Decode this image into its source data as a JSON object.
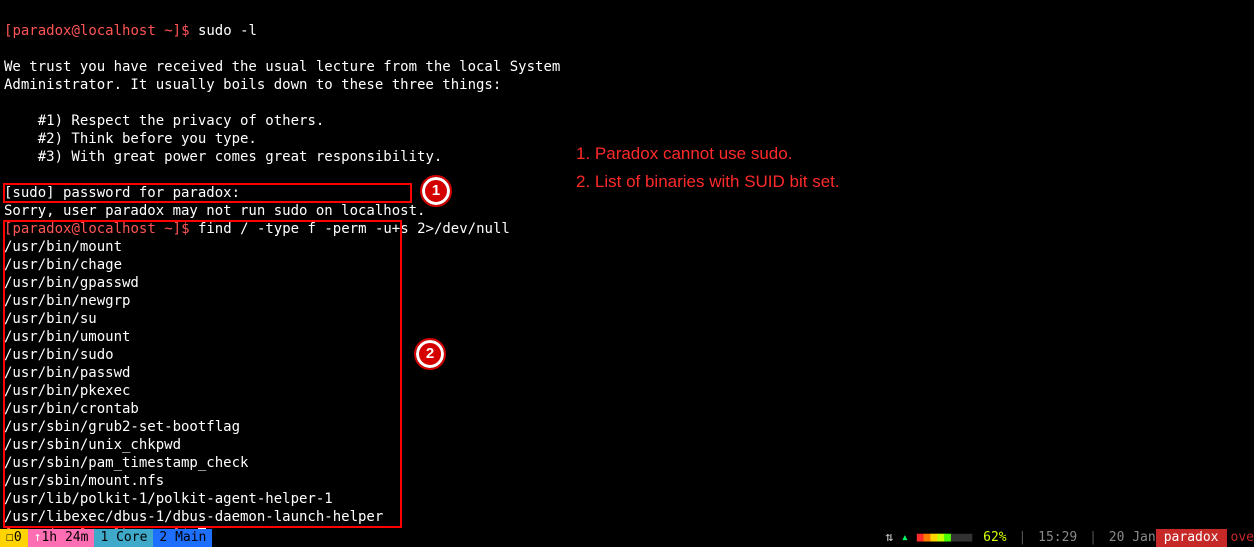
{
  "prompt": {
    "user": "paradox",
    "host": "localhost",
    "path": "~",
    "mark": "$"
  },
  "cmds": {
    "sudo": "sudo -l",
    "find": "find / -type f -perm -u+s 2>/dev/null"
  },
  "lecture": {
    "l1": "We trust you have received the usual lecture from the local System",
    "l2": "Administrator. It usually boils down to these three things:",
    "i1": "#1) Respect the privacy of others.",
    "i2": "#2) Think before you type.",
    "i3": "#3) With great power comes great responsibility."
  },
  "pw": {
    "line": "[sudo] password for paradox:"
  },
  "deny": {
    "line": "Sorry, user paradox may not run sudo on localhost."
  },
  "files": [
    "/usr/bin/mount",
    "/usr/bin/chage",
    "/usr/bin/gpasswd",
    "/usr/bin/newgrp",
    "/usr/bin/su",
    "/usr/bin/umount",
    "/usr/bin/sudo",
    "/usr/bin/passwd",
    "/usr/bin/pkexec",
    "/usr/bin/crontab",
    "/usr/sbin/grub2-set-bootflag",
    "/usr/sbin/unix_chkpwd",
    "/usr/sbin/pam_timestamp_check",
    "/usr/sbin/mount.nfs",
    "/usr/lib/polkit-1/polkit-agent-helper-1",
    "/usr/libexec/dbus-1/dbus-daemon-launch-helper"
  ],
  "anno": {
    "legend1": "1. Paradox cannot use sudo.",
    "legend2": "2. List of binaries with SUID bit set.",
    "badge1": "1",
    "badge2": "2",
    "color": "#ff0000"
  },
  "status": {
    "ws": "0",
    "uptime": "1h 24m",
    "core": "1 Core",
    "main": "2 Main",
    "battery_pct": "62%",
    "time": "15:29",
    "date": "20 Jan",
    "hostbadge": "paradox",
    "tail": "ove",
    "colors": {
      "yellow": "#ffd400",
      "pink": "#ff6db3",
      "cyan": "#3fa9c9",
      "blue": "#1f6fff",
      "red": "#c62828",
      "grey": "#8a8a8a"
    }
  }
}
